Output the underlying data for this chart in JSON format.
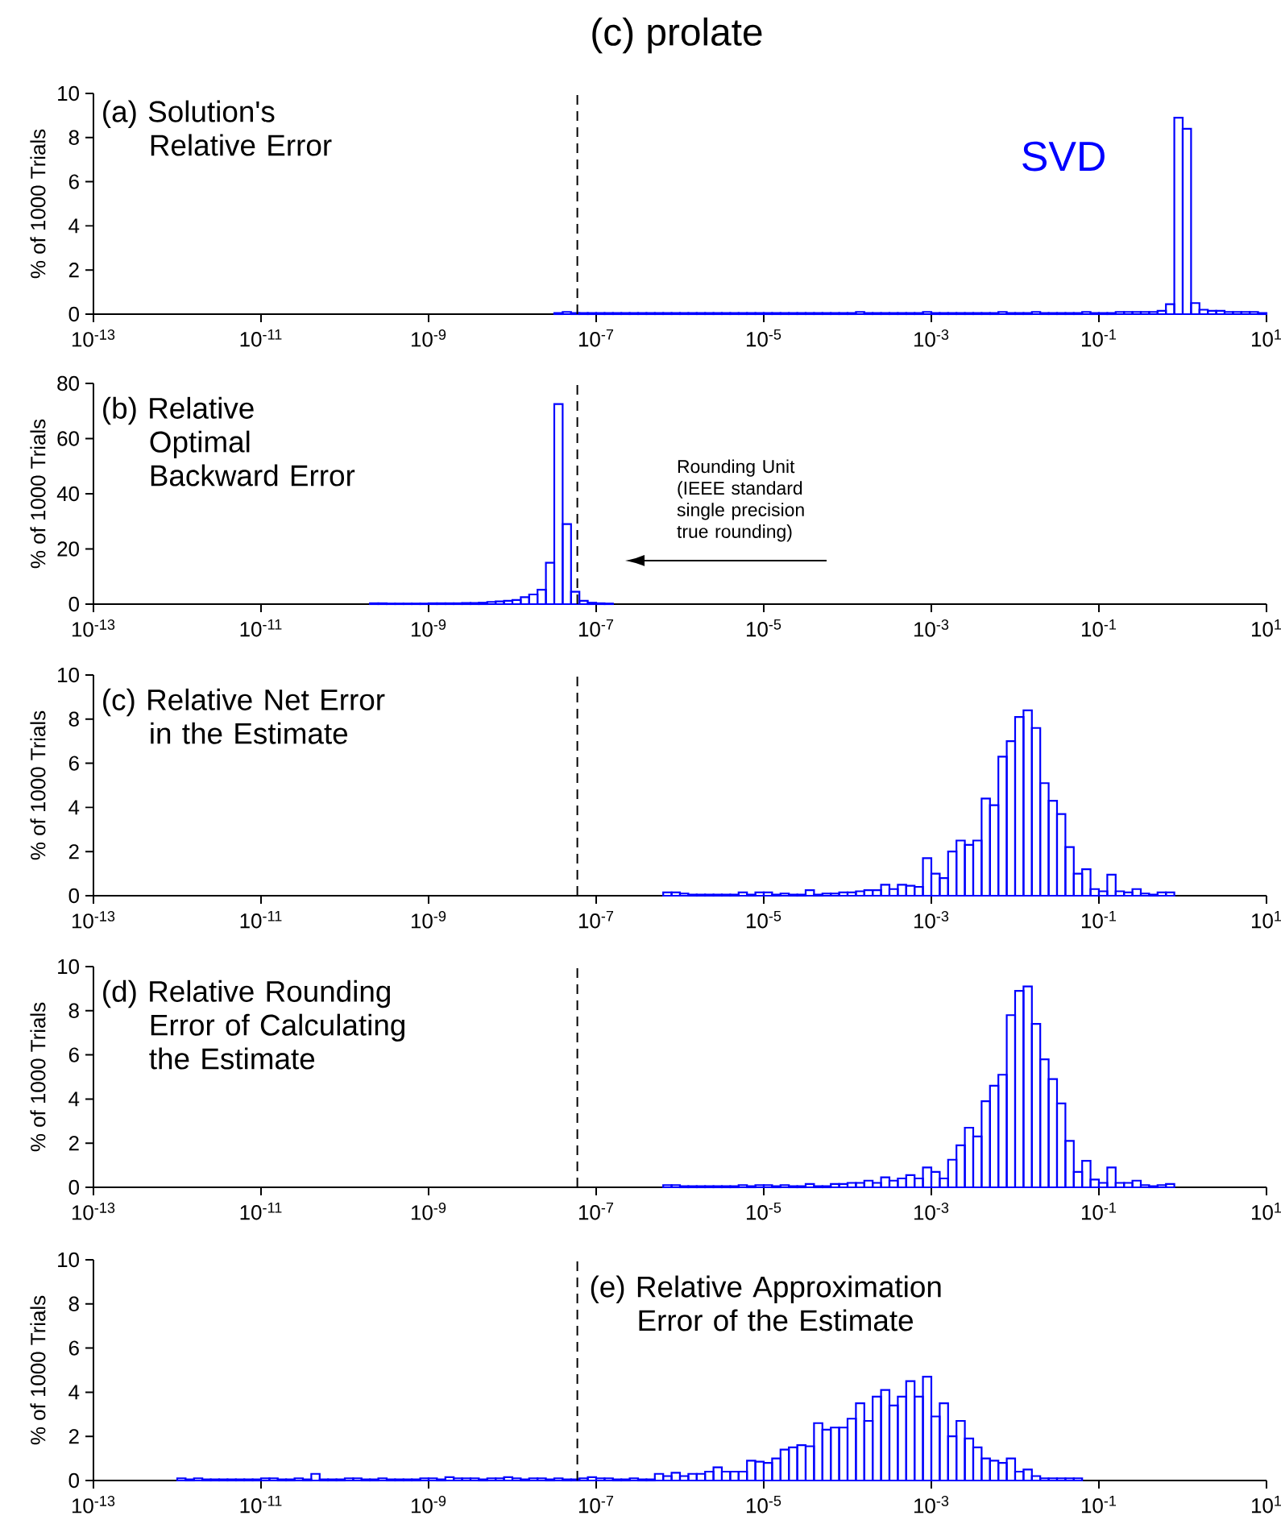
{
  "chart_data": [
    {
      "type": "histogram",
      "title": "(a) Solution's Relative Error",
      "ylabel": "% of 1000 Trials",
      "log": "x",
      "annotations": [
        "(c) prolate"
      ],
      "bins": [
        3.162e-08,
        3.981e-08,
        5.012e-08,
        6.31e-08,
        7.943e-08,
        1e-07,
        1.259e-07,
        1.585e-07,
        1.995e-07,
        2.512e-07,
        3.162e-07,
        3.981e-07,
        5.012e-07,
        6.31e-07,
        7.943e-07,
        1e-06,
        1.259e-06,
        1.585e-06,
        1.995e-06,
        2.512e-06,
        3.162e-06,
        3.981e-06,
        5.012e-06,
        6.31e-06,
        7.943e-06,
        1e-05,
        1.259e-05,
        1.585e-05,
        1.995e-05,
        2.512e-05,
        3.162e-05,
        3.981e-05,
        5.012e-05,
        6.31e-05,
        7.943e-05,
        0.0001,
        0.0001259,
        0.0001585,
        0.0001995,
        0.0002512,
        0.0003162,
        0.0003981,
        0.0005012,
        0.000631,
        0.0007943,
        0.001,
        0.001259,
        0.001585,
        0.001995,
        0.002512,
        0.003162,
        0.003981,
        0.005012,
        0.00631,
        0.007943,
        0.01,
        0.01259,
        0.01585,
        0.01995,
        0.02512,
        0.03162,
        0.03981,
        0.05012,
        0.0631,
        0.07943,
        0.1,
        0.1259,
        0.1585,
        0.1995,
        0.2512,
        0.3162,
        0.3981,
        0.5012,
        0.631,
        0.7943,
        1,
        1.259,
        1.585,
        1.995,
        2.512,
        3.162,
        3.981,
        5.012,
        6.31,
        7.943,
        10
      ],
      "series": [
        {
          "name": "SVD",
          "color": "#0000ff",
          "values": [
            0.05,
            0.1,
            0.05,
            0.05,
            0.05,
            0.05,
            0.05,
            0.05,
            0.05,
            0.05,
            0.05,
            0.05,
            0.05,
            0.05,
            0.05,
            0.05,
            0.05,
            0.05,
            0.05,
            0.05,
            0.05,
            0.05,
            0.05,
            0.05,
            0.05,
            0.05,
            0.05,
            0.05,
            0.05,
            0.05,
            0.05,
            0.05,
            0.05,
            0.05,
            0.05,
            0.05,
            0.1,
            0.05,
            0.05,
            0.05,
            0.05,
            0.05,
            0.05,
            0.05,
            0.1,
            0.05,
            0.05,
            0.05,
            0.05,
            0.05,
            0.05,
            0.05,
            0.05,
            0.1,
            0.05,
            0.05,
            0.05,
            0.1,
            0.05,
            0.05,
            0.05,
            0.05,
            0.05,
            0.1,
            0.05,
            0.05,
            0.05,
            0.1,
            0.1,
            0.1,
            0.1,
            0.1,
            0.15,
            0.45,
            8.9,
            8.4,
            0.5,
            0.2,
            0.15,
            0.15,
            0.1,
            0.1,
            0.1,
            0.1,
            0.05
          ]
        }
      ],
      "xlim": [
        1e-13,
        10
      ],
      "ylim": [
        0,
        10
      ],
      "xticks": [
        {
          "value": 1e-13,
          "label": "10$^{-13}$"
        },
        {
          "value": 1e-11,
          "label": "10$^{-11}$"
        },
        {
          "value": 1e-09,
          "label": "10$^{-9}$"
        },
        {
          "value": 1e-07,
          "label": "10$^{-7}$"
        },
        {
          "value": 1e-05,
          "label": "10$^{-5}$"
        },
        {
          "value": 0.001,
          "label": "10$^{-3}$"
        },
        {
          "value": 0.1,
          "label": "10$^{-1}$"
        },
        {
          "value": 10,
          "label": "10$^{1}$"
        }
      ],
      "yticks": [
        0,
        2,
        4,
        6,
        8,
        10
      ],
      "ref_lines": [
        {
          "axis": "x",
          "value": 5.96e-08,
          "line_style": "dashed",
          "color": "#000000"
        }
      ]
    },
    {
      "type": "histogram",
      "title": "(b) Relative Optimal Backward Error",
      "ylabel": "% of 1000 Trials",
      "log": "x",
      "color": "#0000ff",
      "annotations": [
        "Rounding Unit (IEEE standard single precision true rounding)"
      ],
      "bins": [
        1.995e-10,
        2.512e-10,
        3.162e-10,
        3.981e-10,
        5.012e-10,
        6.31e-10,
        7.943e-10,
        1e-09,
        1.259e-09,
        1.585e-09,
        1.995e-09,
        2.512e-09,
        3.162e-09,
        3.981e-09,
        5.012e-09,
        6.31e-09,
        7.943e-09,
        1e-08,
        1.259e-08,
        1.585e-08,
        1.995e-08,
        2.512e-08,
        3.162e-08,
        3.981e-08,
        5.012e-08,
        6.31e-08,
        7.943e-08,
        1e-07,
        1.259e-07,
        1.585e-07
      ],
      "values": [
        0.3,
        0.3,
        0.2,
        0.2,
        0.2,
        0.2,
        0.2,
        0.3,
        0.3,
        0.3,
        0.3,
        0.4,
        0.4,
        0.5,
        0.8,
        1.0,
        1.2,
        1.5,
        2.5,
        3.5,
        5.2,
        15,
        72.5,
        29,
        4.5,
        1.2,
        0.5,
        0.3,
        0.2
      ],
      "xlim": [
        1e-13,
        10
      ],
      "ylim": [
        0,
        80
      ],
      "xticks": [
        {
          "value": 1e-13,
          "label": "10$^{-13}$"
        },
        {
          "value": 1e-11,
          "label": "10$^{-11}$"
        },
        {
          "value": 1e-09,
          "label": "10$^{-9}$"
        },
        {
          "value": 1e-07,
          "label": "10$^{-7}$"
        },
        {
          "value": 1e-05,
          "label": "10$^{-5}$"
        },
        {
          "value": 0.001,
          "label": "10$^{-3}$"
        },
        {
          "value": 0.1,
          "label": "10$^{-1}$"
        },
        {
          "value": 10,
          "label": "10$^{1}$"
        }
      ],
      "yticks": [
        0,
        20,
        40,
        60,
        80
      ],
      "ref_lines": [
        {
          "axis": "x",
          "value": 5.96e-08,
          "line_style": "dashed",
          "color": "#000000"
        }
      ]
    },
    {
      "type": "histogram",
      "title": "(c) Relative Net Error in the Estimate",
      "ylabel": "% of 1000 Trials",
      "log": "x",
      "color": "#0000ff",
      "bins": [
        6.31e-07,
        7.943e-07,
        1e-06,
        1.259e-06,
        1.585e-06,
        1.995e-06,
        2.512e-06,
        3.162e-06,
        3.981e-06,
        5.012e-06,
        6.31e-06,
        7.943e-06,
        1e-05,
        1.259e-05,
        1.585e-05,
        1.995e-05,
        2.512e-05,
        3.162e-05,
        3.981e-05,
        5.012e-05,
        6.31e-05,
        7.943e-05,
        0.0001,
        0.0001259,
        0.0001585,
        0.0001995,
        0.0002512,
        0.0003162,
        0.0003981,
        0.0005012,
        0.000631,
        0.0007943,
        0.001,
        0.001259,
        0.001585,
        0.001995,
        0.002512,
        0.003162,
        0.003981,
        0.005012,
        0.00631,
        0.007943,
        0.01,
        0.01259,
        0.01585,
        0.01995,
        0.02512,
        0.03162,
        0.03981,
        0.05012,
        0.0631,
        0.07943,
        0.1,
        0.1259,
        0.1585,
        0.1995,
        0.2512,
        0.3162,
        0.3981,
        0.5012,
        0.631,
        0.7943
      ],
      "values": [
        0.15,
        0.15,
        0.1,
        0.05,
        0.05,
        0.05,
        0.05,
        0.05,
        0.05,
        0.15,
        0.05,
        0.15,
        0.15,
        0.05,
        0.1,
        0.05,
        0.05,
        0.25,
        0.05,
        0.1,
        0.1,
        0.15,
        0.15,
        0.2,
        0.25,
        0.25,
        0.5,
        0.3,
        0.5,
        0.45,
        0.4,
        1.7,
        1.0,
        0.8,
        2.0,
        2.5,
        2.3,
        2.5,
        4.4,
        4.1,
        6.3,
        7.0,
        8.1,
        8.4,
        7.6,
        5.1,
        4.3,
        3.7,
        2.2,
        1.0,
        1.2,
        0.3,
        0.2,
        0.95,
        0.2,
        0.15,
        0.3,
        0.1,
        0.05,
        0.15,
        0.15
      ],
      "xlim": [
        1e-13,
        10
      ],
      "ylim": [
        0,
        10
      ],
      "xticks": [
        {
          "value": 1e-13,
          "label": "10$^{-13}$"
        },
        {
          "value": 1e-11,
          "label": "10$^{-11}$"
        },
        {
          "value": 1e-09,
          "label": "10$^{-9}$"
        },
        {
          "value": 1e-07,
          "label": "10$^{-7}$"
        },
        {
          "value": 1e-05,
          "label": "10$^{-5}$"
        },
        {
          "value": 0.001,
          "label": "10$^{-3}$"
        },
        {
          "value": 0.1,
          "label": "10$^{-1}$"
        },
        {
          "value": 10,
          "label": "10$^{1}$"
        }
      ],
      "yticks": [
        0,
        2,
        4,
        6,
        8,
        10
      ],
      "ref_lines": [
        {
          "axis": "x",
          "value": 5.96e-08,
          "line_style": "dashed",
          "color": "#000000"
        }
      ]
    },
    {
      "type": "histogram",
      "title": "(d) Relative Rounding Error of Calculating the Estimate",
      "ylabel": "% of 1000 Trials",
      "log": "x",
      "color": "#0000ff",
      "bins": [
        6.31e-07,
        7.943e-07,
        1e-06,
        1.259e-06,
        1.585e-06,
        1.995e-06,
        2.512e-06,
        3.162e-06,
        3.981e-06,
        5.012e-06,
        6.31e-06,
        7.943e-06,
        1e-05,
        1.259e-05,
        1.585e-05,
        1.995e-05,
        2.512e-05,
        3.162e-05,
        3.981e-05,
        5.012e-05,
        6.31e-05,
        7.943e-05,
        0.0001,
        0.0001259,
        0.0001585,
        0.0001995,
        0.0002512,
        0.0003162,
        0.0003981,
        0.0005012,
        0.000631,
        0.0007943,
        0.001,
        0.001259,
        0.001585,
        0.001995,
        0.002512,
        0.003162,
        0.003981,
        0.005012,
        0.00631,
        0.007943,
        0.01,
        0.01259,
        0.01585,
        0.01995,
        0.02512,
        0.03162,
        0.03981,
        0.05012,
        0.0631,
        0.07943,
        0.1,
        0.1259,
        0.1585,
        0.1995,
        0.2512,
        0.3162,
        0.3981,
        0.5012,
        0.631,
        0.7943
      ],
      "values": [
        0.1,
        0.1,
        0.05,
        0.05,
        0.05,
        0.05,
        0.05,
        0.05,
        0.05,
        0.1,
        0.05,
        0.1,
        0.1,
        0.05,
        0.1,
        0.05,
        0.05,
        0.15,
        0.05,
        0.05,
        0.15,
        0.15,
        0.2,
        0.2,
        0.3,
        0.2,
        0.45,
        0.3,
        0.4,
        0.55,
        0.4,
        0.9,
        0.7,
        0.4,
        1.25,
        1.9,
        2.7,
        2.3,
        3.9,
        4.6,
        5.1,
        7.8,
        8.9,
        9.1,
        7.4,
        5.8,
        4.9,
        3.8,
        2.1,
        0.7,
        1.2,
        0.35,
        0.2,
        0.9,
        0.2,
        0.2,
        0.3,
        0.1,
        0.05,
        0.1,
        0.15
      ],
      "xlim": [
        1e-13,
        10
      ],
      "ylim": [
        0,
        10
      ],
      "xticks": [
        {
          "value": 1e-13,
          "label": "10$^{-13}$"
        },
        {
          "value": 1e-11,
          "label": "10$^{-11}$"
        },
        {
          "value": 1e-09,
          "label": "10$^{-9}$"
        },
        {
          "value": 1e-07,
          "label": "10$^{-7}$"
        },
        {
          "value": 1e-05,
          "label": "10$^{-5}$"
        },
        {
          "value": 0.001,
          "label": "10$^{-3}$"
        },
        {
          "value": 0.1,
          "label": "10$^{-1}$"
        },
        {
          "value": 10,
          "label": "10$^{1}$"
        }
      ],
      "yticks": [
        0,
        2,
        4,
        6,
        8,
        10
      ],
      "ref_lines": [
        {
          "axis": "x",
          "value": 5.96e-08,
          "line_style": "dashed",
          "color": "#000000"
        }
      ]
    },
    {
      "type": "histogram",
      "title": "(e) Relative Approximation Error of the Estimate",
      "ylabel": "% of 1000 Trials",
      "log": "x",
      "color": "#0000ff",
      "bins": [
        1e-12,
        1.259e-12,
        1.585e-12,
        1.995e-12,
        2.512e-12,
        3.162e-12,
        3.981e-12,
        5.012e-12,
        6.31e-12,
        7.943e-12,
        1e-11,
        1.259e-11,
        1.585e-11,
        1.995e-11,
        2.512e-11,
        3.162e-11,
        3.981e-11,
        5.012e-11,
        6.31e-11,
        7.943e-11,
        1e-10,
        1.259e-10,
        1.585e-10,
        1.995e-10,
        2.512e-10,
        3.162e-10,
        3.981e-10,
        5.012e-10,
        6.31e-10,
        7.943e-10,
        1e-09,
        1.259e-09,
        1.585e-09,
        1.995e-09,
        2.512e-09,
        3.162e-09,
        3.981e-09,
        5.012e-09,
        6.31e-09,
        7.943e-09,
        1e-08,
        1.259e-08,
        1.585e-08,
        1.995e-08,
        2.512e-08,
        3.162e-08,
        3.981e-08,
        5.012e-08,
        6.31e-08,
        7.943e-08,
        1e-07,
        1.259e-07,
        1.585e-07,
        1.995e-07,
        2.512e-07,
        3.162e-07,
        3.981e-07,
        5.012e-07,
        6.31e-07,
        7.943e-07,
        1e-06,
        1.259e-06,
        1.585e-06,
        1.995e-06,
        2.512e-06,
        3.162e-06,
        3.981e-06,
        5.012e-06,
        6.31e-06,
        7.943e-06,
        1e-05,
        1.259e-05,
        1.585e-05,
        1.995e-05,
        2.512e-05,
        3.162e-05,
        3.981e-05,
        5.012e-05,
        6.31e-05,
        7.943e-05,
        0.0001,
        0.0001259,
        0.0001585,
        0.0001995,
        0.0002512,
        0.0003162,
        0.0003981,
        0.0005012,
        0.000631,
        0.0007943,
        0.001,
        0.001259,
        0.001585,
        0.001995,
        0.002512,
        0.003162,
        0.003981,
        0.005012,
        0.00631,
        0.007943,
        0.01,
        0.01259,
        0.01585,
        0.01995,
        0.02512,
        0.03162,
        0.03981,
        0.05012,
        0.0631
      ],
      "values": [
        0.1,
        0.05,
        0.1,
        0.05,
        0.05,
        0.05,
        0.05,
        0.05,
        0.05,
        0.05,
        0.1,
        0.1,
        0.05,
        0.05,
        0.1,
        0.05,
        0.3,
        0.05,
        0.05,
        0.05,
        0.1,
        0.1,
        0.05,
        0.05,
        0.1,
        0.05,
        0.05,
        0.05,
        0.05,
        0.1,
        0.1,
        0.05,
        0.15,
        0.1,
        0.1,
        0.1,
        0.05,
        0.1,
        0.1,
        0.15,
        0.1,
        0.05,
        0.1,
        0.1,
        0.05,
        0.1,
        0.05,
        0.05,
        0.1,
        0.15,
        0.1,
        0.1,
        0.05,
        0.05,
        0.1,
        0.05,
        0.05,
        0.3,
        0.2,
        0.35,
        0.2,
        0.3,
        0.3,
        0.4,
        0.6,
        0.4,
        0.4,
        0.4,
        0.9,
        0.85,
        0.8,
        1.0,
        1.4,
        1.5,
        1.6,
        1.55,
        2.6,
        2.3,
        2.4,
        2.4,
        2.8,
        3.5,
        2.7,
        3.8,
        4.1,
        3.4,
        3.8,
        4.5,
        3.8,
        4.7,
        2.9,
        3.5,
        2.0,
        2.7,
        1.9,
        1.5,
        1.0,
        0.9,
        0.8,
        1.0,
        0.4,
        0.5,
        0.2,
        0.1,
        0.1,
        0.1,
        0.1,
        0.1
      ],
      "xlim": [
        1e-13,
        10
      ],
      "ylim": [
        0,
        10
      ],
      "xticks": [
        {
          "value": 1e-13,
          "label": "10$^{-13}$"
        },
        {
          "value": 1e-11,
          "label": "10$^{-11}$"
        },
        {
          "value": 1e-09,
          "label": "10$^{-9}$"
        },
        {
          "value": 1e-07,
          "label": "10$^{-7}$"
        },
        {
          "value": 1e-05,
          "label": "10$^{-5}$"
        },
        {
          "value": 0.001,
          "label": "10$^{-3}$"
        },
        {
          "value": 0.1,
          "label": "10$^{-1}$"
        },
        {
          "value": 10,
          "label": "10$^{1}$"
        }
      ],
      "yticks": [
        0,
        2,
        4,
        6,
        8,
        10
      ],
      "ref_lines": [
        {
          "axis": "x",
          "value": 5.96e-08,
          "line_style": "dashed",
          "color": "#000000"
        }
      ]
    }
  ]
}
